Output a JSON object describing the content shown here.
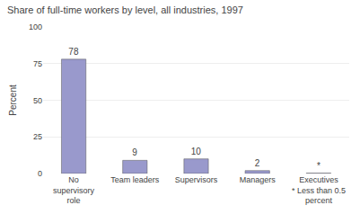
{
  "chart_data": {
    "type": "bar",
    "title": "Share of full-time workers by level, all industries, 1997",
    "ylabel": "Percent",
    "categories": [
      "No\nsupervisory\nrole",
      "Team leaders",
      "Supervisors",
      "Managers",
      "Executives\n* Less than 0.5\npercent"
    ],
    "values": [
      78,
      9,
      10,
      2,
      0.3
    ],
    "value_labels": [
      "78",
      "9",
      "10",
      "2",
      "*"
    ],
    "data_labels": true,
    "color": "#9999cc",
    "ylim": [
      0,
      100
    ],
    "yticks": [
      0,
      25,
      50,
      75,
      100
    ],
    "grid": true
  }
}
